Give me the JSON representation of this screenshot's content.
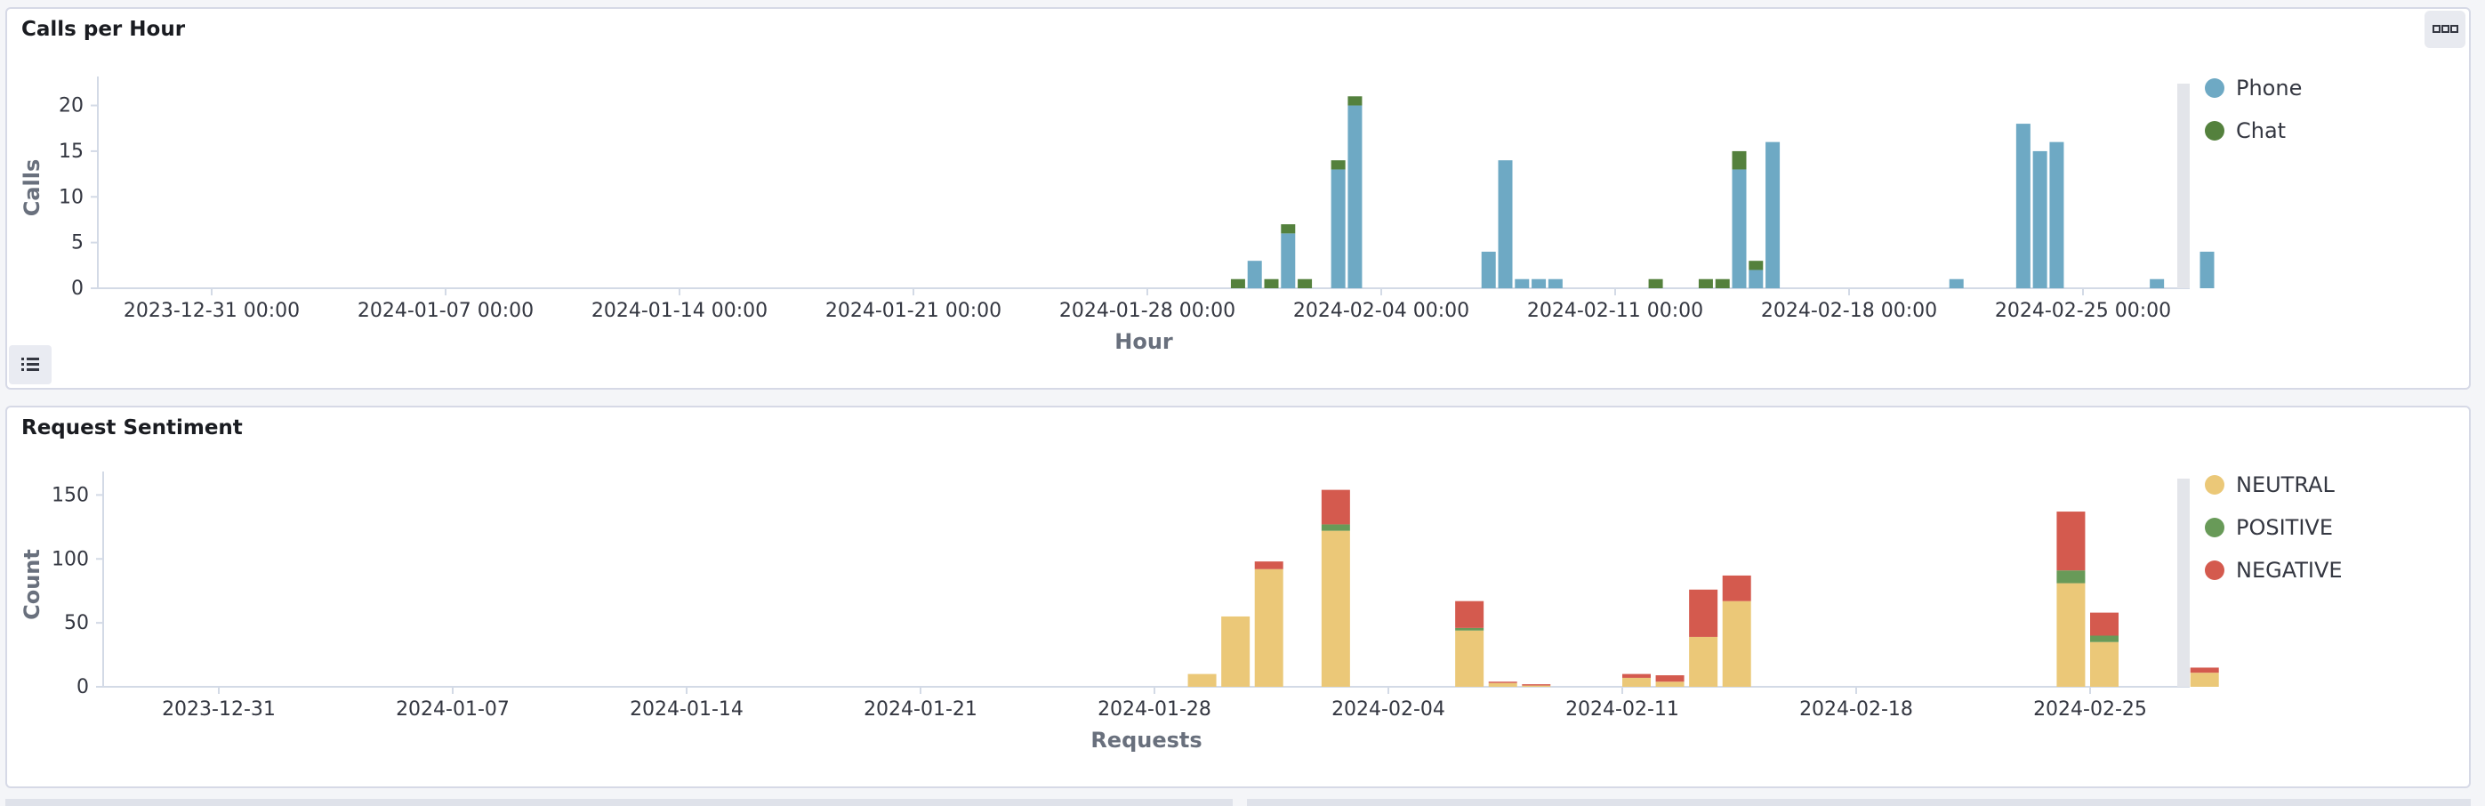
{
  "colors": {
    "phone": "#6ea9c4",
    "chat": "#54813d",
    "neutral": "#ebc878",
    "positive": "#689a58",
    "negative": "#d45a4e",
    "axis": "#69707d",
    "grid": "#d3dae6",
    "text": "#343741"
  },
  "chart_data": [
    {
      "type": "bar",
      "title": "Calls per Hour",
      "xlabel": "Hour",
      "ylabel": "Calls",
      "ylim": [
        0,
        22
      ],
      "yticks": [
        0,
        5,
        10,
        15,
        20
      ],
      "xticks": [
        "2023-12-31 00:00",
        "2024-01-07 00:00",
        "2024-01-14 00:00",
        "2024-01-21 00:00",
        "2024-01-28 00:00",
        "2024-02-04 00:00",
        "2024-02-11 00:00",
        "2024-02-18 00:00",
        "2024-02-25 00:00"
      ],
      "legend": [
        "Phone",
        "Chat"
      ],
      "legend_position": "right",
      "bars": [
        {
          "x": "2024-01-30 12:00",
          "Phone": 0,
          "Chat": 1
        },
        {
          "x": "2024-01-31 00:00",
          "Phone": 3,
          "Chat": 0
        },
        {
          "x": "2024-01-31 12:00",
          "Phone": 0,
          "Chat": 1
        },
        {
          "x": "2024-02-01 00:00",
          "Phone": 6,
          "Chat": 1
        },
        {
          "x": "2024-02-01 12:00",
          "Phone": 0,
          "Chat": 1
        },
        {
          "x": "2024-02-02 12:00",
          "Phone": 13,
          "Chat": 1
        },
        {
          "x": "2024-02-03 00:00",
          "Phone": 20,
          "Chat": 1
        },
        {
          "x": "2024-02-07 00:00",
          "Phone": 4,
          "Chat": 0
        },
        {
          "x": "2024-02-07 12:00",
          "Phone": 14,
          "Chat": 0
        },
        {
          "x": "2024-02-08 00:00",
          "Phone": 1,
          "Chat": 0
        },
        {
          "x": "2024-02-08 12:00",
          "Phone": 1,
          "Chat": 0
        },
        {
          "x": "2024-02-09 00:00",
          "Phone": 1,
          "Chat": 0
        },
        {
          "x": "2024-02-12 00:00",
          "Phone": 0,
          "Chat": 1
        },
        {
          "x": "2024-02-13 12:00",
          "Phone": 0,
          "Chat": 1
        },
        {
          "x": "2024-02-14 00:00",
          "Phone": 0,
          "Chat": 1
        },
        {
          "x": "2024-02-14 12:00",
          "Phone": 13,
          "Chat": 2
        },
        {
          "x": "2024-02-15 00:00",
          "Phone": 2,
          "Chat": 1
        },
        {
          "x": "2024-02-15 12:00",
          "Phone": 16,
          "Chat": 0
        },
        {
          "x": "2024-02-21 00:00",
          "Phone": 1,
          "Chat": 0
        },
        {
          "x": "2024-02-23 00:00",
          "Phone": 18,
          "Chat": 0
        },
        {
          "x": "2024-02-23 12:00",
          "Phone": 15,
          "Chat": 0
        },
        {
          "x": "2024-02-24 00:00",
          "Phone": 16,
          "Chat": 0
        },
        {
          "x": "2024-02-27 00:00",
          "Phone": 1,
          "Chat": 0
        },
        {
          "x": "2024-02-28 12:00",
          "Phone": 4,
          "Chat": 0
        }
      ]
    },
    {
      "type": "bar",
      "title": "Request Sentiment",
      "xlabel": "Requests",
      "ylabel": "Count",
      "ylim": [
        0,
        160
      ],
      "yticks": [
        0,
        50,
        100,
        150
      ],
      "xticks": [
        "2023-12-31",
        "2024-01-07",
        "2024-01-14",
        "2024-01-21",
        "2024-01-28",
        "2024-02-04",
        "2024-02-11",
        "2024-02-18",
        "2024-02-25"
      ],
      "legend": [
        "NEUTRAL",
        "POSITIVE",
        "NEGATIVE"
      ],
      "legend_position": "right",
      "bars": [
        {
          "x": "2024-01-29",
          "NEUTRAL": 10,
          "POSITIVE": 0,
          "NEGATIVE": 0
        },
        {
          "x": "2024-01-30",
          "NEUTRAL": 55,
          "POSITIVE": 0,
          "NEGATIVE": 0
        },
        {
          "x": "2024-01-31",
          "NEUTRAL": 92,
          "POSITIVE": 0,
          "NEGATIVE": 6
        },
        {
          "x": "2024-02-02",
          "NEUTRAL": 122,
          "POSITIVE": 5,
          "NEGATIVE": 27
        },
        {
          "x": "2024-02-06",
          "NEUTRAL": 44,
          "POSITIVE": 2,
          "NEGATIVE": 21
        },
        {
          "x": "2024-02-07",
          "NEUTRAL": 3,
          "POSITIVE": 0,
          "NEGATIVE": 1
        },
        {
          "x": "2024-02-08",
          "NEUTRAL": 1,
          "POSITIVE": 0,
          "NEGATIVE": 1
        },
        {
          "x": "2024-02-11",
          "NEUTRAL": 7,
          "POSITIVE": 0,
          "NEGATIVE": 3
        },
        {
          "x": "2024-02-12",
          "NEUTRAL": 4,
          "POSITIVE": 0,
          "NEGATIVE": 5
        },
        {
          "x": "2024-02-13",
          "NEUTRAL": 39,
          "POSITIVE": 0,
          "NEGATIVE": 37
        },
        {
          "x": "2024-02-14",
          "NEUTRAL": 67,
          "POSITIVE": 0,
          "NEGATIVE": 20
        },
        {
          "x": "2024-02-24",
          "NEUTRAL": 81,
          "POSITIVE": 10,
          "NEGATIVE": 46
        },
        {
          "x": "2024-02-25",
          "NEUTRAL": 35,
          "POSITIVE": 5,
          "NEGATIVE": 18
        },
        {
          "x": "2024-02-28",
          "NEUTRAL": 11,
          "POSITIVE": 0,
          "NEGATIVE": 4
        }
      ]
    }
  ]
}
